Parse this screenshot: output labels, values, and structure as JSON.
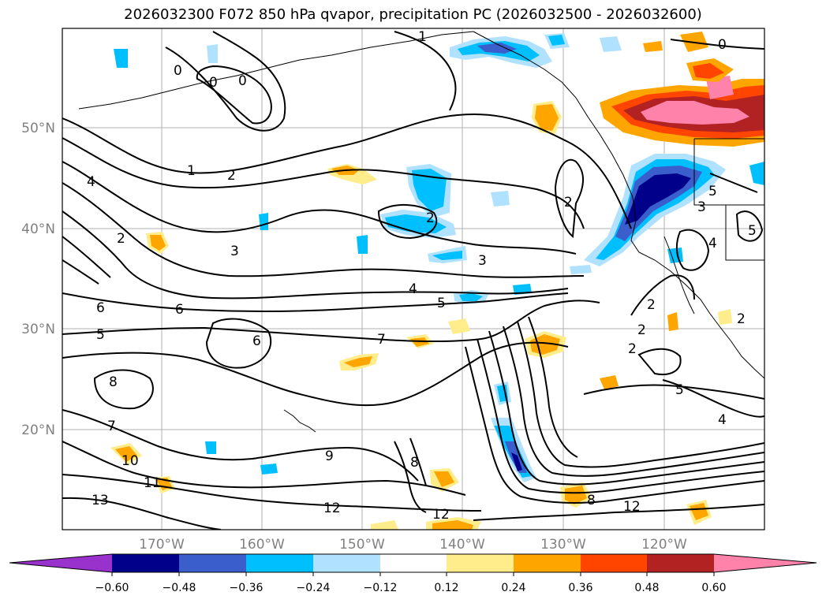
{
  "title": "2026032300 F072 850 hPa qvapor, precipitation PC (2026032500 - 2026032600)",
  "axes": {
    "lon_labels": [
      "170°W",
      "160°W",
      "150°W",
      "140°W",
      "130°W",
      "120°W"
    ],
    "lat_labels": [
      "50°N",
      "40°N",
      "30°N",
      "20°N"
    ]
  },
  "colorbar": {
    "tick_labels": [
      "−0.60",
      "−0.48",
      "−0.36",
      "−0.24",
      "−0.12",
      "0.12",
      "0.24",
      "0.36",
      "0.48",
      "0.60"
    ],
    "colors": [
      "#9932cc",
      "#00008b",
      "#3a5fcd",
      "#00bfff",
      "#b0e2ff",
      "#ffffff",
      "#ffec8b",
      "#ffa500",
      "#ff4500",
      "#b22222",
      "#ff82ab"
    ]
  },
  "contour_labels": [
    "0",
    "0",
    "0",
    "1",
    "1",
    "2",
    "2",
    "2",
    "2",
    "3",
    "3",
    "4",
    "4",
    "5",
    "5",
    "6",
    "6",
    "6",
    "7",
    "7",
    "8",
    "8",
    "9",
    "10",
    "11",
    "12",
    "12",
    "12",
    "13",
    "0",
    "2",
    "2",
    "2",
    "3",
    "4",
    "5",
    "5",
    "4",
    "5",
    "2",
    "8"
  ]
}
